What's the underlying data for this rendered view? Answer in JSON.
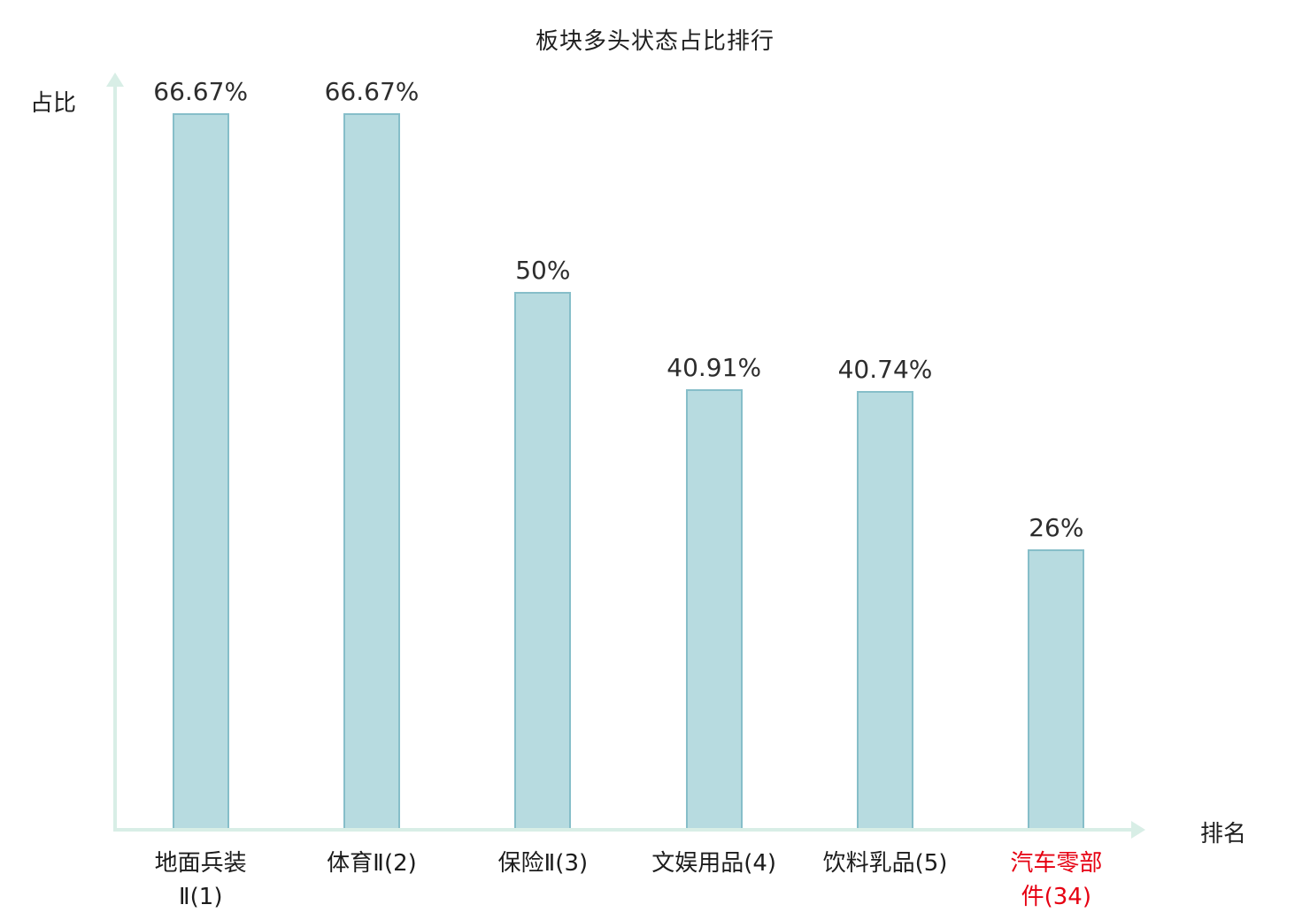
{
  "chart": {
    "title": "板块多头状态占比排行",
    "y_axis_label": "占比",
    "x_axis_label": "排名"
  },
  "chart_data": {
    "type": "bar",
    "title": "板块多头状态占比排行",
    "xlabel": "排名",
    "ylabel": "占比",
    "categories": [
      "地面兵装\nⅡ(1)",
      "体育Ⅱ(2)",
      "保险Ⅱ(3)",
      "文娱用品(4)",
      "饮料乳品(5)",
      "汽车零部\n件(34)"
    ],
    "values": [
      66.67,
      66.67,
      50,
      40.91,
      40.74,
      26
    ],
    "value_labels": [
      "66.67%",
      "66.67%",
      "50%",
      "40.91%",
      "40.74%",
      "26%"
    ],
    "highlight_index": 5,
    "ylim": [
      0,
      70
    ],
    "grid": false,
    "legend": "none",
    "bar_fill_color": "#b7dbe0",
    "bar_border_color": "#86bec9",
    "axis_color": "#d8eee6",
    "value_label_color": "#2d2d2d",
    "category_label_color": "#1c1c1c",
    "highlight_color": "#e60012"
  }
}
